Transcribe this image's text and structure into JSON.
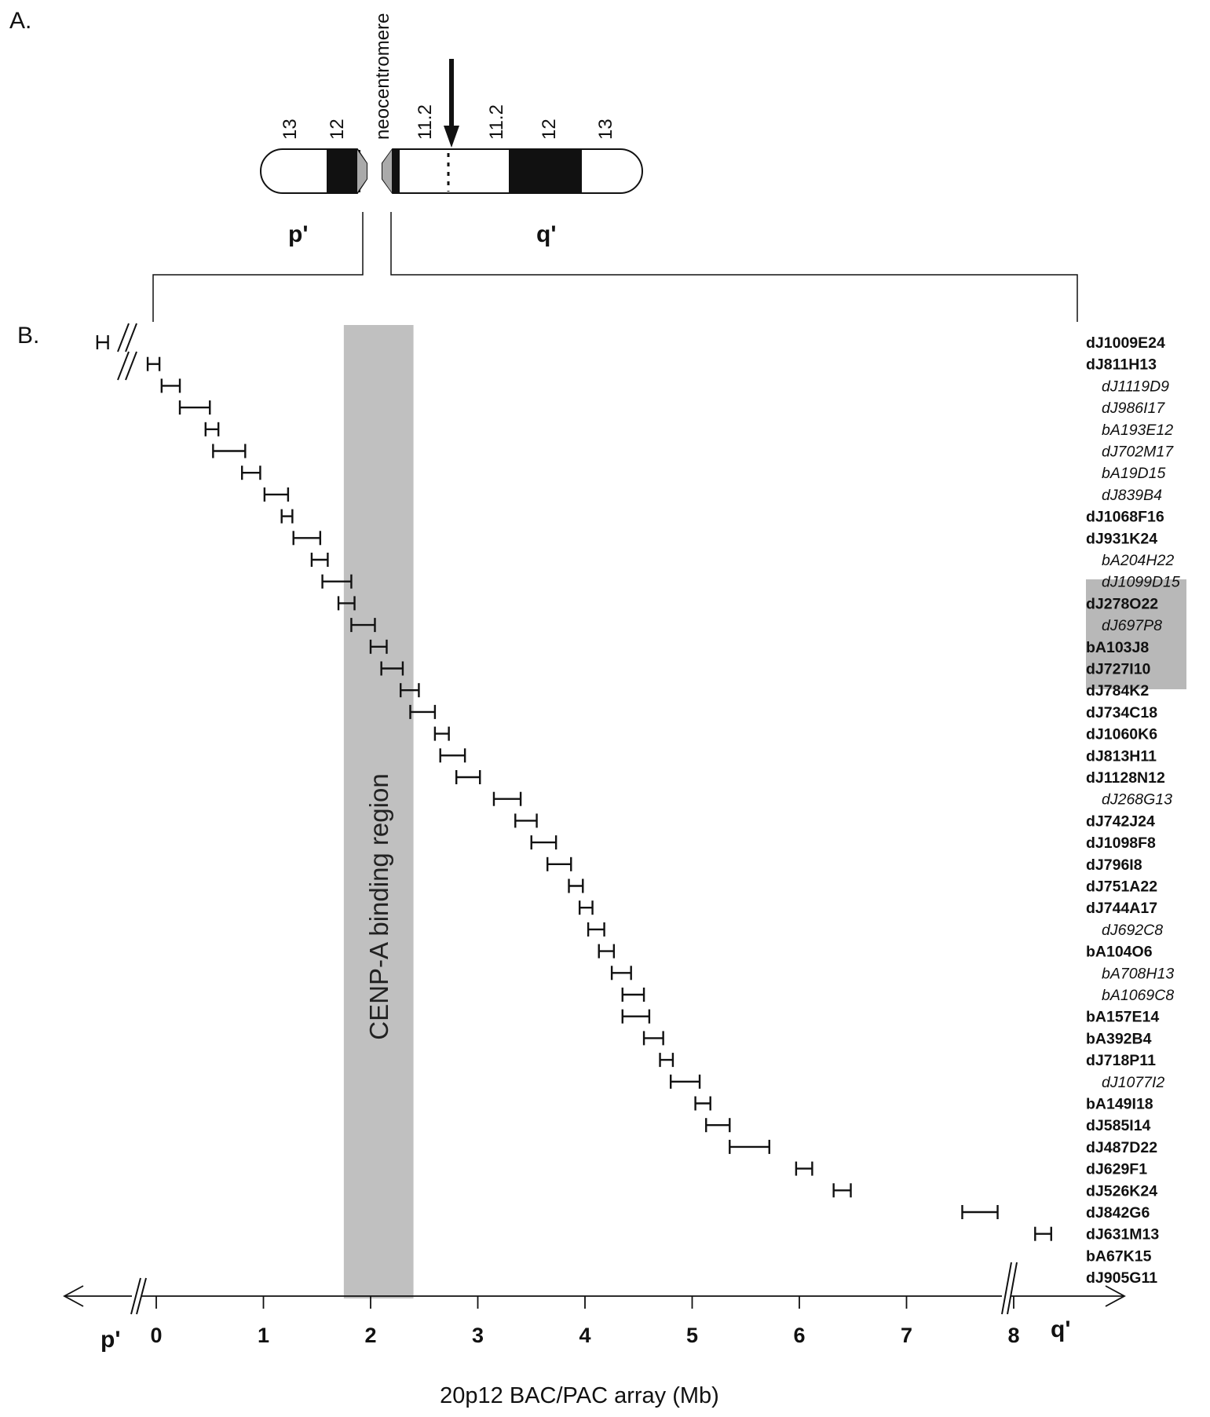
{
  "panel_a_label": "A.",
  "panel_b_label": "B.",
  "chromosome": {
    "bands_p": [
      "13",
      "12"
    ],
    "bands_q": [
      "11.2",
      "11.2",
      "12",
      "13"
    ],
    "neocentromere_label": "neocentromere",
    "p_arm_label": "p'",
    "q_arm_label": "q'"
  },
  "cenp_region": {
    "label": "CENP-A binding region",
    "start_mb": 1.75,
    "end_mb": 2.4,
    "color": "#c0c0c0"
  },
  "highlight_color": "#b8b8b8",
  "axis": {
    "title": "20p12 BAC/PAC array (Mb)",
    "ticks": [
      "0",
      "1",
      "2",
      "3",
      "4",
      "5",
      "6",
      "7",
      "8"
    ],
    "left_label": "p'",
    "right_label": "q'"
  },
  "chart_data": {
    "type": "diagram",
    "xlabel": "20p12 BAC/PAC array (Mb)",
    "xlim": [
      0,
      8.6
    ],
    "clones": [
      {
        "name": "dJ1009E24",
        "start": -0.55,
        "end": -0.45,
        "style": "bold"
      },
      {
        "name": "dJ811H13",
        "start": -0.08,
        "end": 0.03,
        "style": "bold"
      },
      {
        "name": "dJ1119D9",
        "start": 0.05,
        "end": 0.22,
        "style": "italic"
      },
      {
        "name": "dJ986I17",
        "start": 0.22,
        "end": 0.5,
        "style": "italic"
      },
      {
        "name": "bA193E12",
        "start": 0.46,
        "end": 0.58,
        "style": "italic"
      },
      {
        "name": "dJ702M17",
        "start": 0.53,
        "end": 0.83,
        "style": "italic"
      },
      {
        "name": "bA19D15",
        "start": 0.8,
        "end": 0.97,
        "style": "italic"
      },
      {
        "name": "dJ839B4",
        "start": 1.01,
        "end": 1.23,
        "style": "italic"
      },
      {
        "name": "dJ1068F16",
        "start": 1.17,
        "end": 1.27,
        "style": "bold"
      },
      {
        "name": "dJ931K24",
        "start": 1.28,
        "end": 1.53,
        "style": "bold"
      },
      {
        "name": "bA204H22",
        "start": 1.45,
        "end": 1.6,
        "style": "italic"
      },
      {
        "name": "dJ1099D15",
        "start": 1.55,
        "end": 1.82,
        "style": "italic"
      },
      {
        "name": "dJ278O22",
        "start": 1.7,
        "end": 1.85,
        "style": "bold"
      },
      {
        "name": "dJ697P8",
        "start": 1.82,
        "end": 2.04,
        "style": "italic"
      },
      {
        "name": "bA103J8",
        "start": 2.0,
        "end": 2.15,
        "style": "bold"
      },
      {
        "name": "dJ727I10",
        "start": 2.1,
        "end": 2.3,
        "style": "bold"
      },
      {
        "name": "dJ784K2",
        "start": 2.28,
        "end": 2.45,
        "style": "bold"
      },
      {
        "name": "dJ734C18",
        "start": 2.37,
        "end": 2.6,
        "style": "bold"
      },
      {
        "name": "dJ1060K6",
        "start": 2.6,
        "end": 2.73,
        "style": "bold"
      },
      {
        "name": "dJ813H11",
        "start": 2.65,
        "end": 2.88,
        "style": "bold"
      },
      {
        "name": "dJ1128N12",
        "start": 2.8,
        "end": 3.02,
        "style": "bold"
      },
      {
        "name": "dJ268G13",
        "start": 3.15,
        "end": 3.4,
        "style": "italic"
      },
      {
        "name": "dJ742J24",
        "start": 3.35,
        "end": 3.55,
        "style": "bold"
      },
      {
        "name": "dJ1098F8",
        "start": 3.5,
        "end": 3.73,
        "style": "bold"
      },
      {
        "name": "dJ796I8",
        "start": 3.65,
        "end": 3.87,
        "style": "bold"
      },
      {
        "name": "dJ751A22",
        "start": 3.85,
        "end": 3.98,
        "style": "bold"
      },
      {
        "name": "dJ744A17",
        "start": 3.95,
        "end": 4.07,
        "style": "bold"
      },
      {
        "name": "dJ692C8",
        "start": 4.03,
        "end": 4.18,
        "style": "italic"
      },
      {
        "name": "bA104O6",
        "start": 4.13,
        "end": 4.27,
        "style": "bold"
      },
      {
        "name": "bA708H13",
        "start": 4.25,
        "end": 4.43,
        "style": "italic"
      },
      {
        "name": "bA1069C8",
        "start": 4.35,
        "end": 4.55,
        "style": "italic"
      },
      {
        "name": "bA157E14",
        "start": 4.35,
        "end": 4.6,
        "style": "bold"
      },
      {
        "name": "bA392B4",
        "start": 4.55,
        "end": 4.73,
        "style": "bold"
      },
      {
        "name": "dJ718P11",
        "start": 4.7,
        "end": 4.82,
        "style": "bold"
      },
      {
        "name": "dJ1077I2",
        "start": 4.8,
        "end": 5.07,
        "style": "italic"
      },
      {
        "name": "bA149I18",
        "start": 5.03,
        "end": 5.17,
        "style": "bold"
      },
      {
        "name": "dJ585I14",
        "start": 5.13,
        "end": 5.35,
        "style": "bold"
      },
      {
        "name": "dJ487D22",
        "start": 5.35,
        "end": 5.72,
        "style": "bold"
      },
      {
        "name": "dJ629F1",
        "start": 5.97,
        "end": 6.12,
        "style": "bold"
      },
      {
        "name": "dJ526K24",
        "start": 6.32,
        "end": 6.48,
        "style": "bold"
      },
      {
        "name": "dJ842G6",
        "start": 7.52,
        "end": 7.85,
        "style": "bold"
      },
      {
        "name": "dJ631M13",
        "start": 8.2,
        "end": 8.35,
        "style": "bold"
      },
      {
        "name": "bA67K15",
        "start": null,
        "end": null,
        "style": "bold"
      },
      {
        "name": "dJ905G11",
        "start": null,
        "end": null,
        "style": "bold"
      }
    ]
  }
}
